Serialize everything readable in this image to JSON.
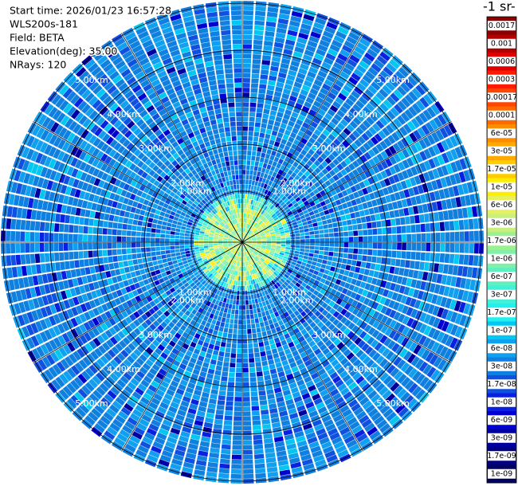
{
  "chart_data": {
    "type": "ppi",
    "info": [
      "Start time: 2026/01/23 16:57:28",
      "WLS200s-181",
      "Field: BETA",
      "Elevation(deg): 35.00",
      "NRays: 120"
    ],
    "range_labels": [
      "1.00km",
      "2.00km",
      "3.00km",
      "4.00km",
      "5.00km"
    ],
    "colorbar": {
      "title": "-1 sr-",
      "levels": [
        {
          "label": "0.0017",
          "color": "#8b0000"
        },
        {
          "label": "0.001",
          "color": "#b00000"
        },
        {
          "label": "0.0006",
          "color": "#dd0000"
        },
        {
          "label": "0.0003",
          "color": "#ff1a00"
        },
        {
          "label": "0.00017",
          "color": "#ff4500"
        },
        {
          "label": "0.0001",
          "color": "#ff6a00"
        },
        {
          "label": "6e-05",
          "color": "#ff8c00"
        },
        {
          "label": "3e-05",
          "color": "#ffaa00"
        },
        {
          "label": "1.7e-05",
          "color": "#ffcc00"
        },
        {
          "label": "1e-05",
          "color": "#ffee00"
        },
        {
          "label": "6e-06",
          "color": "#e8f060"
        },
        {
          "label": "3e-06",
          "color": "#c8f080"
        },
        {
          "label": "1.7e-06",
          "color": "#9cf090"
        },
        {
          "label": "1e-06",
          "color": "#80f0a8"
        },
        {
          "label": "6e-07",
          "color": "#60f0c0"
        },
        {
          "label": "3e-07",
          "color": "#40f0d8"
        },
        {
          "label": "1.7e-07",
          "color": "#20f0f0"
        },
        {
          "label": "1e-07",
          "color": "#00c8f0"
        },
        {
          "label": "6e-08",
          "color": "#10a0f0"
        },
        {
          "label": "3e-08",
          "color": "#1080e0"
        },
        {
          "label": "1.7e-08",
          "color": "#1050e0"
        },
        {
          "label": "1e-08",
          "color": "#0a20e0"
        },
        {
          "label": "6e-09",
          "color": "#0000d0"
        },
        {
          "label": "3e-09",
          "color": "#0000a0"
        },
        {
          "label": "1.7e-09",
          "color": "#000080"
        },
        {
          "label": "1e-09",
          "color": "#000060"
        }
      ]
    }
  }
}
